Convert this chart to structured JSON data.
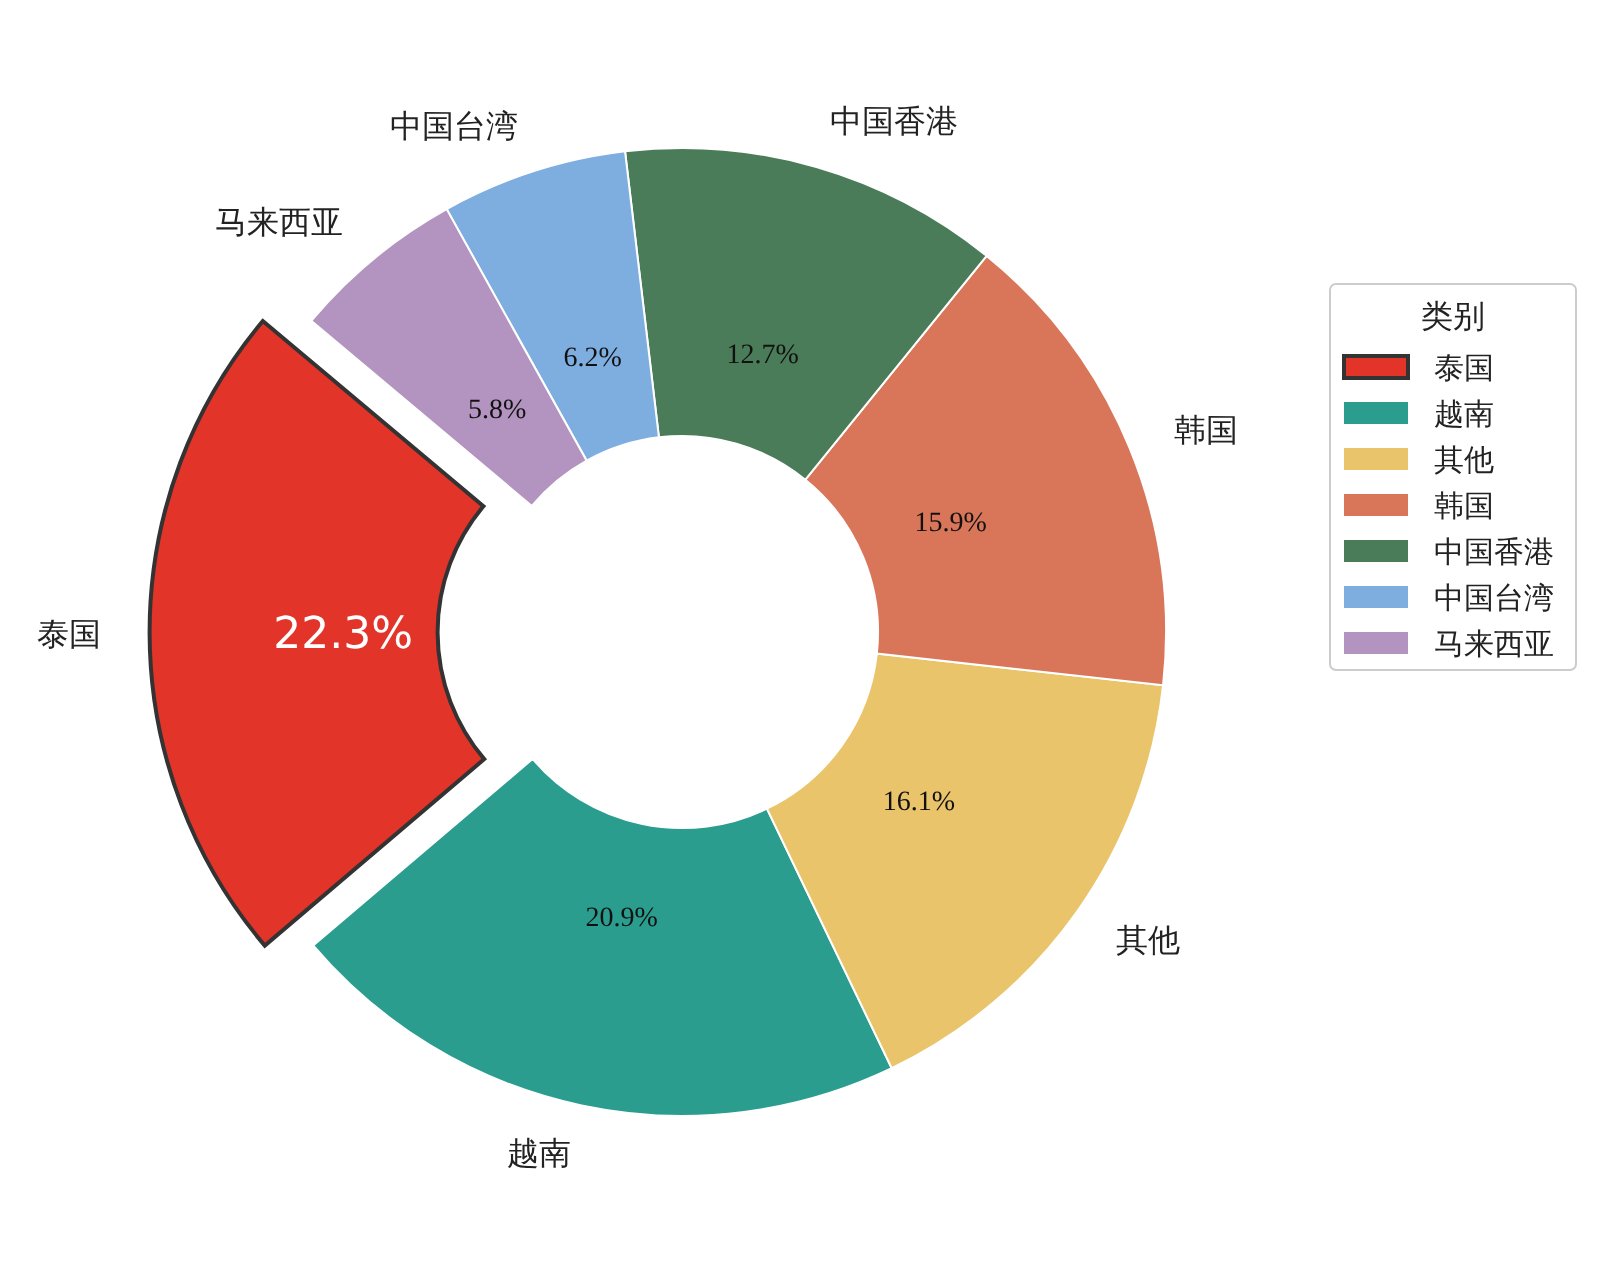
{
  "chart_data": {
    "type": "donut",
    "categories": [
      "泰国",
      "越南",
      "其他",
      "韩国",
      "中国香港",
      "中国台湾",
      "马来西亚"
    ],
    "values": [
      22.3,
      20.9,
      16.1,
      15.9,
      12.7,
      6.2,
      5.8
    ],
    "value_labels": [
      "22.3%",
      "20.9%",
      "16.1%",
      "15.9%",
      "12.7%",
      "6.2%",
      "5.8%"
    ],
    "colors": [
      "#e3342a",
      "#2a9d8f",
      "#e9c46a",
      "#d9765a",
      "#4a7c59",
      "#7eaee0",
      "#b394c0"
    ],
    "legend": "right",
    "legend_title": "类别"
  }
}
